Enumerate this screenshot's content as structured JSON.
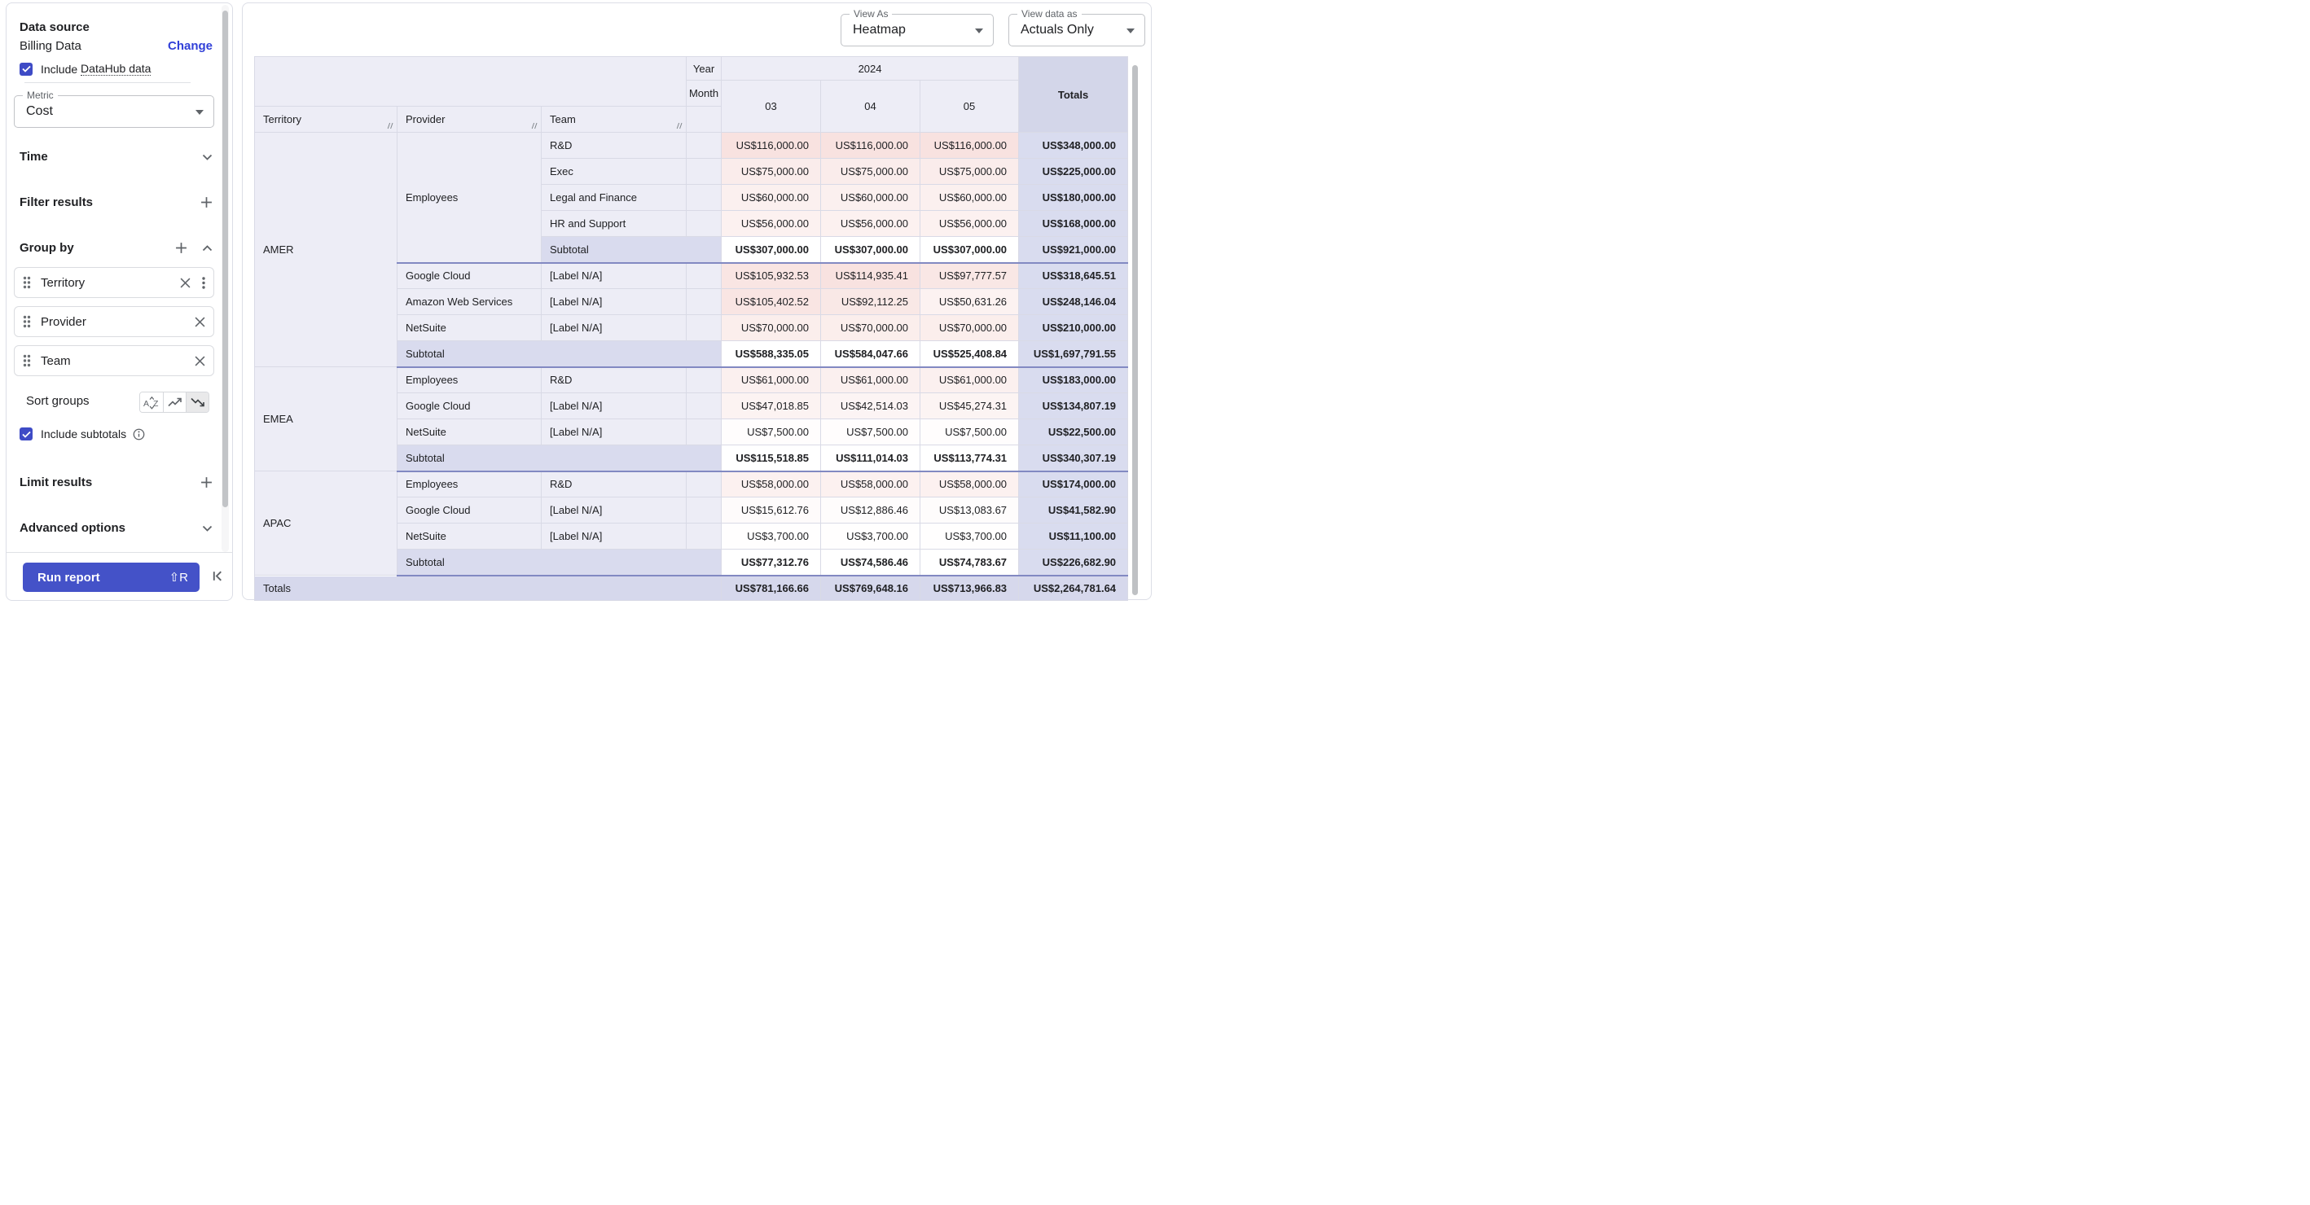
{
  "colors": {
    "accent": "#3E4BC6",
    "link": "#3140D8",
    "button": "#4452C8",
    "heat_max_color": "#F8E2E0",
    "label_bg": "#EDEDF6",
    "totals_col_bg": "#D9DCEF",
    "subtotal_bg": "#D9DBEE",
    "totals_row_bg": "#D6D8EC",
    "dark_border": "#8289C2"
  },
  "sidebar": {
    "data_source": {
      "heading": "Data source",
      "value": "Billing Data",
      "change": "Change",
      "include_prefix": "Include",
      "datahub_link": "DataHub data",
      "checked": true
    },
    "metric": {
      "label": "Metric",
      "value": "Cost"
    },
    "time_heading": "Time",
    "filter_heading": "Filter results",
    "group_by_heading": "Group by",
    "chips": [
      {
        "label": "Territory"
      },
      {
        "label": "Provider"
      },
      {
        "label": "Team"
      }
    ],
    "sort_groups_label": "Sort groups",
    "include_subtotals": "Include subtotals",
    "include_subtotals_checked": true,
    "limit_heading": "Limit results",
    "advanced_heading": "Advanced options",
    "run_report": "Run report",
    "run_shortcut": "⇧R"
  },
  "toolbar": {
    "view_as_label": "View As",
    "view_as_value": "Heatmap",
    "view_data_label": "View data as",
    "view_data_value": "Actuals Only"
  },
  "table": {
    "heat_max": 116000,
    "rows": [
      {
        "h": 29,
        "cells": [
          {
            "t": "",
            "cs": 3,
            "rs": 2,
            "c": "hd",
            "n": "header-corner"
          },
          {
            "t": "Year",
            "c": "hd axis",
            "n": "year-label"
          },
          {
            "t": "2024",
            "cs": 3,
            "c": "hd center",
            "n": "year-value"
          },
          {
            "t": "Totals",
            "rs": 3,
            "c": "hd totalsh",
            "n": "totals-column-header"
          }
        ]
      },
      {
        "h": 32,
        "cells": [
          {
            "t": "Month",
            "c": "hd axis",
            "n": "month-label"
          },
          {
            "t": "03",
            "rs": 2,
            "c": "hd center",
            "n": "month-03"
          },
          {
            "t": "04",
            "rs": 2,
            "c": "hd center",
            "n": "month-04"
          },
          {
            "t": "05",
            "rs": 2,
            "c": "hd center",
            "n": "month-05"
          }
        ]
      },
      {
        "h": 32,
        "cells": [
          {
            "t": "Territory",
            "c": "hd colh",
            "n": "territory-column-header",
            "handle": true,
            "i": true
          },
          {
            "t": "Provider",
            "c": "hd colh",
            "n": "provider-column-header",
            "handle": true,
            "i": true
          },
          {
            "t": "Team",
            "c": "hd colh",
            "n": "team-column-header",
            "handle": true,
            "i": true
          },
          {
            "t": "",
            "c": "hd",
            "n": "header-spacer"
          }
        ]
      },
      {
        "cells": [
          {
            "t": "AMER",
            "rs": 9,
            "c": "lbl",
            "n": "territory-amer"
          },
          {
            "t": "Employees",
            "rs": 5,
            "c": "lbl subend",
            "n": "provider-employees"
          },
          {
            "t": "R&D",
            "c": "lbl",
            "n": "team-rd"
          },
          {
            "t": "",
            "c": "lbl",
            "n": "row-spacer"
          },
          {
            "t": "US$116,000.00",
            "v": 116000,
            "c": "heat"
          },
          {
            "t": "US$116,000.00",
            "v": 116000,
            "c": "heat"
          },
          {
            "t": "US$116,000.00",
            "v": 116000,
            "c": "heat"
          },
          {
            "t": "US$348,000.00",
            "c": "totc"
          }
        ]
      },
      {
        "cells": [
          {
            "t": "Exec",
            "c": "lbl",
            "n": "team-exec"
          },
          {
            "t": "",
            "c": "lbl",
            "n": "row-spacer"
          },
          {
            "t": "US$75,000.00",
            "v": 75000,
            "c": "heat"
          },
          {
            "t": "US$75,000.00",
            "v": 75000,
            "c": "heat"
          },
          {
            "t": "US$75,000.00",
            "v": 75000,
            "c": "heat"
          },
          {
            "t": "US$225,000.00",
            "c": "totc"
          }
        ]
      },
      {
        "cells": [
          {
            "t": "Legal and Finance",
            "c": "lbl",
            "n": "team-legal-and-finance"
          },
          {
            "t": "",
            "c": "lbl",
            "n": "row-spacer"
          },
          {
            "t": "US$60,000.00",
            "v": 60000,
            "c": "heat"
          },
          {
            "t": "US$60,000.00",
            "v": 60000,
            "c": "heat"
          },
          {
            "t": "US$60,000.00",
            "v": 60000,
            "c": "heat"
          },
          {
            "t": "US$180,000.00",
            "c": "totc"
          }
        ]
      },
      {
        "cells": [
          {
            "t": "HR and Support",
            "c": "lbl",
            "n": "team-hr-and-support"
          },
          {
            "t": "",
            "c": "lbl",
            "n": "row-spacer"
          },
          {
            "t": "US$56,000.00",
            "v": 56000,
            "c": "heat"
          },
          {
            "t": "US$56,000.00",
            "v": 56000,
            "c": "heat"
          },
          {
            "t": "US$56,000.00",
            "v": 56000,
            "c": "heat"
          },
          {
            "t": "US$168,000.00",
            "c": "totc"
          }
        ]
      },
      {
        "cells": [
          {
            "t": "Subtotal",
            "cs": 2,
            "c": "lbl sublab db",
            "n": "subtotal-label"
          },
          {
            "t": "US$307,000.00",
            "c": "subv db"
          },
          {
            "t": "US$307,000.00",
            "c": "subv db"
          },
          {
            "t": "US$307,000.00",
            "c": "subv db"
          },
          {
            "t": "US$921,000.00",
            "c": "totc db"
          }
        ]
      },
      {
        "cells": [
          {
            "t": "Google Cloud",
            "c": "lbl",
            "n": "provider-google-cloud"
          },
          {
            "t": "[Label N/A]",
            "c": "lbl",
            "n": "team-label-na"
          },
          {
            "t": "",
            "c": "lbl",
            "n": "row-spacer"
          },
          {
            "t": "US$105,932.53",
            "v": 105932.53,
            "c": "heat"
          },
          {
            "t": "US$114,935.41",
            "v": 114935.41,
            "c": "heat"
          },
          {
            "t": "US$97,777.57",
            "v": 97777.57,
            "c": "heat"
          },
          {
            "t": "US$318,645.51",
            "c": "totc"
          }
        ]
      },
      {
        "cells": [
          {
            "t": "Amazon Web Services",
            "c": "lbl",
            "n": "provider-amazon-web-services"
          },
          {
            "t": "[Label N/A]",
            "c": "lbl",
            "n": "team-label-na"
          },
          {
            "t": "",
            "c": "lbl",
            "n": "row-spacer"
          },
          {
            "t": "US$105,402.52",
            "v": 105402.52,
            "c": "heat"
          },
          {
            "t": "US$92,112.25",
            "v": 92112.25,
            "c": "heat"
          },
          {
            "t": "US$50,631.26",
            "v": 50631.26,
            "c": "heat"
          },
          {
            "t": "US$248,146.04",
            "c": "totc"
          }
        ]
      },
      {
        "cells": [
          {
            "t": "NetSuite",
            "c": "lbl",
            "n": "provider-netsuite"
          },
          {
            "t": "[Label N/A]",
            "c": "lbl",
            "n": "team-label-na"
          },
          {
            "t": "",
            "c": "lbl",
            "n": "row-spacer"
          },
          {
            "t": "US$70,000.00",
            "v": 70000,
            "c": "heat"
          },
          {
            "t": "US$70,000.00",
            "v": 70000,
            "c": "heat"
          },
          {
            "t": "US$70,000.00",
            "v": 70000,
            "c": "heat"
          },
          {
            "t": "US$210,000.00",
            "c": "totc"
          }
        ]
      },
      {
        "cells": [
          {
            "t": "Subtotal",
            "cs": 3,
            "c": "lbl sublab db",
            "n": "subtotal-label"
          },
          {
            "t": "US$588,335.05",
            "c": "subv db"
          },
          {
            "t": "US$584,047.66",
            "c": "subv db"
          },
          {
            "t": "US$525,408.84",
            "c": "subv db"
          },
          {
            "t": "US$1,697,791.55",
            "c": "totc db"
          }
        ]
      },
      {
        "cells": [
          {
            "t": "EMEA",
            "rs": 4,
            "c": "lbl",
            "n": "territory-emea"
          },
          {
            "t": "Employees",
            "c": "lbl",
            "n": "provider-employees"
          },
          {
            "t": "R&D",
            "c": "lbl",
            "n": "team-rd"
          },
          {
            "t": "",
            "c": "lbl",
            "n": "row-spacer"
          },
          {
            "t": "US$61,000.00",
            "v": 61000,
            "c": "heat"
          },
          {
            "t": "US$61,000.00",
            "v": 61000,
            "c": "heat"
          },
          {
            "t": "US$61,000.00",
            "v": 61000,
            "c": "heat"
          },
          {
            "t": "US$183,000.00",
            "c": "totc"
          }
        ]
      },
      {
        "cells": [
          {
            "t": "Google Cloud",
            "c": "lbl",
            "n": "provider-google-cloud"
          },
          {
            "t": "[Label N/A]",
            "c": "lbl",
            "n": "team-label-na"
          },
          {
            "t": "",
            "c": "lbl",
            "n": "row-spacer"
          },
          {
            "t": "US$47,018.85",
            "v": 47018.85,
            "c": "heat"
          },
          {
            "t": "US$42,514.03",
            "v": 42514.03,
            "c": "heat"
          },
          {
            "t": "US$45,274.31",
            "v": 45274.31,
            "c": "heat"
          },
          {
            "t": "US$134,807.19",
            "c": "totc"
          }
        ]
      },
      {
        "cells": [
          {
            "t": "NetSuite",
            "c": "lbl",
            "n": "provider-netsuite"
          },
          {
            "t": "[Label N/A]",
            "c": "lbl",
            "n": "team-label-na"
          },
          {
            "t": "",
            "c": "lbl",
            "n": "row-spacer"
          },
          {
            "t": "US$7,500.00",
            "v": 7500,
            "c": "heat"
          },
          {
            "t": "US$7,500.00",
            "v": 7500,
            "c": "heat"
          },
          {
            "t": "US$7,500.00",
            "v": 7500,
            "c": "heat"
          },
          {
            "t": "US$22,500.00",
            "c": "totc"
          }
        ]
      },
      {
        "cells": [
          {
            "t": "Subtotal",
            "cs": 3,
            "c": "lbl sublab db",
            "n": "subtotal-label"
          },
          {
            "t": "US$115,518.85",
            "c": "subv db"
          },
          {
            "t": "US$111,014.03",
            "c": "subv db"
          },
          {
            "t": "US$113,774.31",
            "c": "subv db"
          },
          {
            "t": "US$340,307.19",
            "c": "totc db"
          }
        ]
      },
      {
        "cells": [
          {
            "t": "APAC",
            "rs": 4,
            "c": "lbl",
            "n": "territory-apac"
          },
          {
            "t": "Employees",
            "c": "lbl",
            "n": "provider-employees"
          },
          {
            "t": "R&D",
            "c": "lbl",
            "n": "team-rd"
          },
          {
            "t": "",
            "c": "lbl",
            "n": "row-spacer"
          },
          {
            "t": "US$58,000.00",
            "v": 58000,
            "c": "heat"
          },
          {
            "t": "US$58,000.00",
            "v": 58000,
            "c": "heat"
          },
          {
            "t": "US$58,000.00",
            "v": 58000,
            "c": "heat"
          },
          {
            "t": "US$174,000.00",
            "c": "totc"
          }
        ]
      },
      {
        "cells": [
          {
            "t": "Google Cloud",
            "c": "lbl",
            "n": "provider-google-cloud"
          },
          {
            "t": "[Label N/A]",
            "c": "lbl",
            "n": "team-label-na"
          },
          {
            "t": "",
            "c": "lbl",
            "n": "row-spacer"
          },
          {
            "t": "US$15,612.76",
            "v": 15612.76,
            "c": "heat"
          },
          {
            "t": "US$12,886.46",
            "v": 12886.46,
            "c": "heat"
          },
          {
            "t": "US$13,083.67",
            "v": 13083.67,
            "c": "heat"
          },
          {
            "t": "US$41,582.90",
            "c": "totc"
          }
        ]
      },
      {
        "cells": [
          {
            "t": "NetSuite",
            "c": "lbl",
            "n": "provider-netsuite"
          },
          {
            "t": "[Label N/A]",
            "c": "lbl",
            "n": "team-label-na"
          },
          {
            "t": "",
            "c": "lbl",
            "n": "row-spacer"
          },
          {
            "t": "US$3,700.00",
            "v": 3700,
            "c": "heat"
          },
          {
            "t": "US$3,700.00",
            "v": 3700,
            "c": "heat"
          },
          {
            "t": "US$3,700.00",
            "v": 3700,
            "c": "heat"
          },
          {
            "t": "US$11,100.00",
            "c": "totc"
          }
        ]
      },
      {
        "cells": [
          {
            "t": "Subtotal",
            "cs": 3,
            "c": "lbl sublab db",
            "n": "subtotal-label"
          },
          {
            "t": "US$77,312.76",
            "c": "subv db"
          },
          {
            "t": "US$74,586.46",
            "c": "subv db"
          },
          {
            "t": "US$74,783.67",
            "c": "subv db"
          },
          {
            "t": "US$226,682.90",
            "c": "totc db"
          }
        ]
      },
      {
        "h": 31,
        "cells": [
          {
            "t": "Totals",
            "cs": 4,
            "c": "trl",
            "n": "grand-totals-label"
          },
          {
            "t": "US$781,166.66",
            "c": "trv",
            "n": "grand-total-03"
          },
          {
            "t": "US$769,648.16",
            "c": "trv",
            "n": "grand-total-04"
          },
          {
            "t": "US$713,966.83",
            "c": "trv",
            "n": "grand-total-05"
          },
          {
            "t": "US$2,264,781.64",
            "c": "trv",
            "n": "grand-total-overall"
          }
        ]
      }
    ]
  }
}
